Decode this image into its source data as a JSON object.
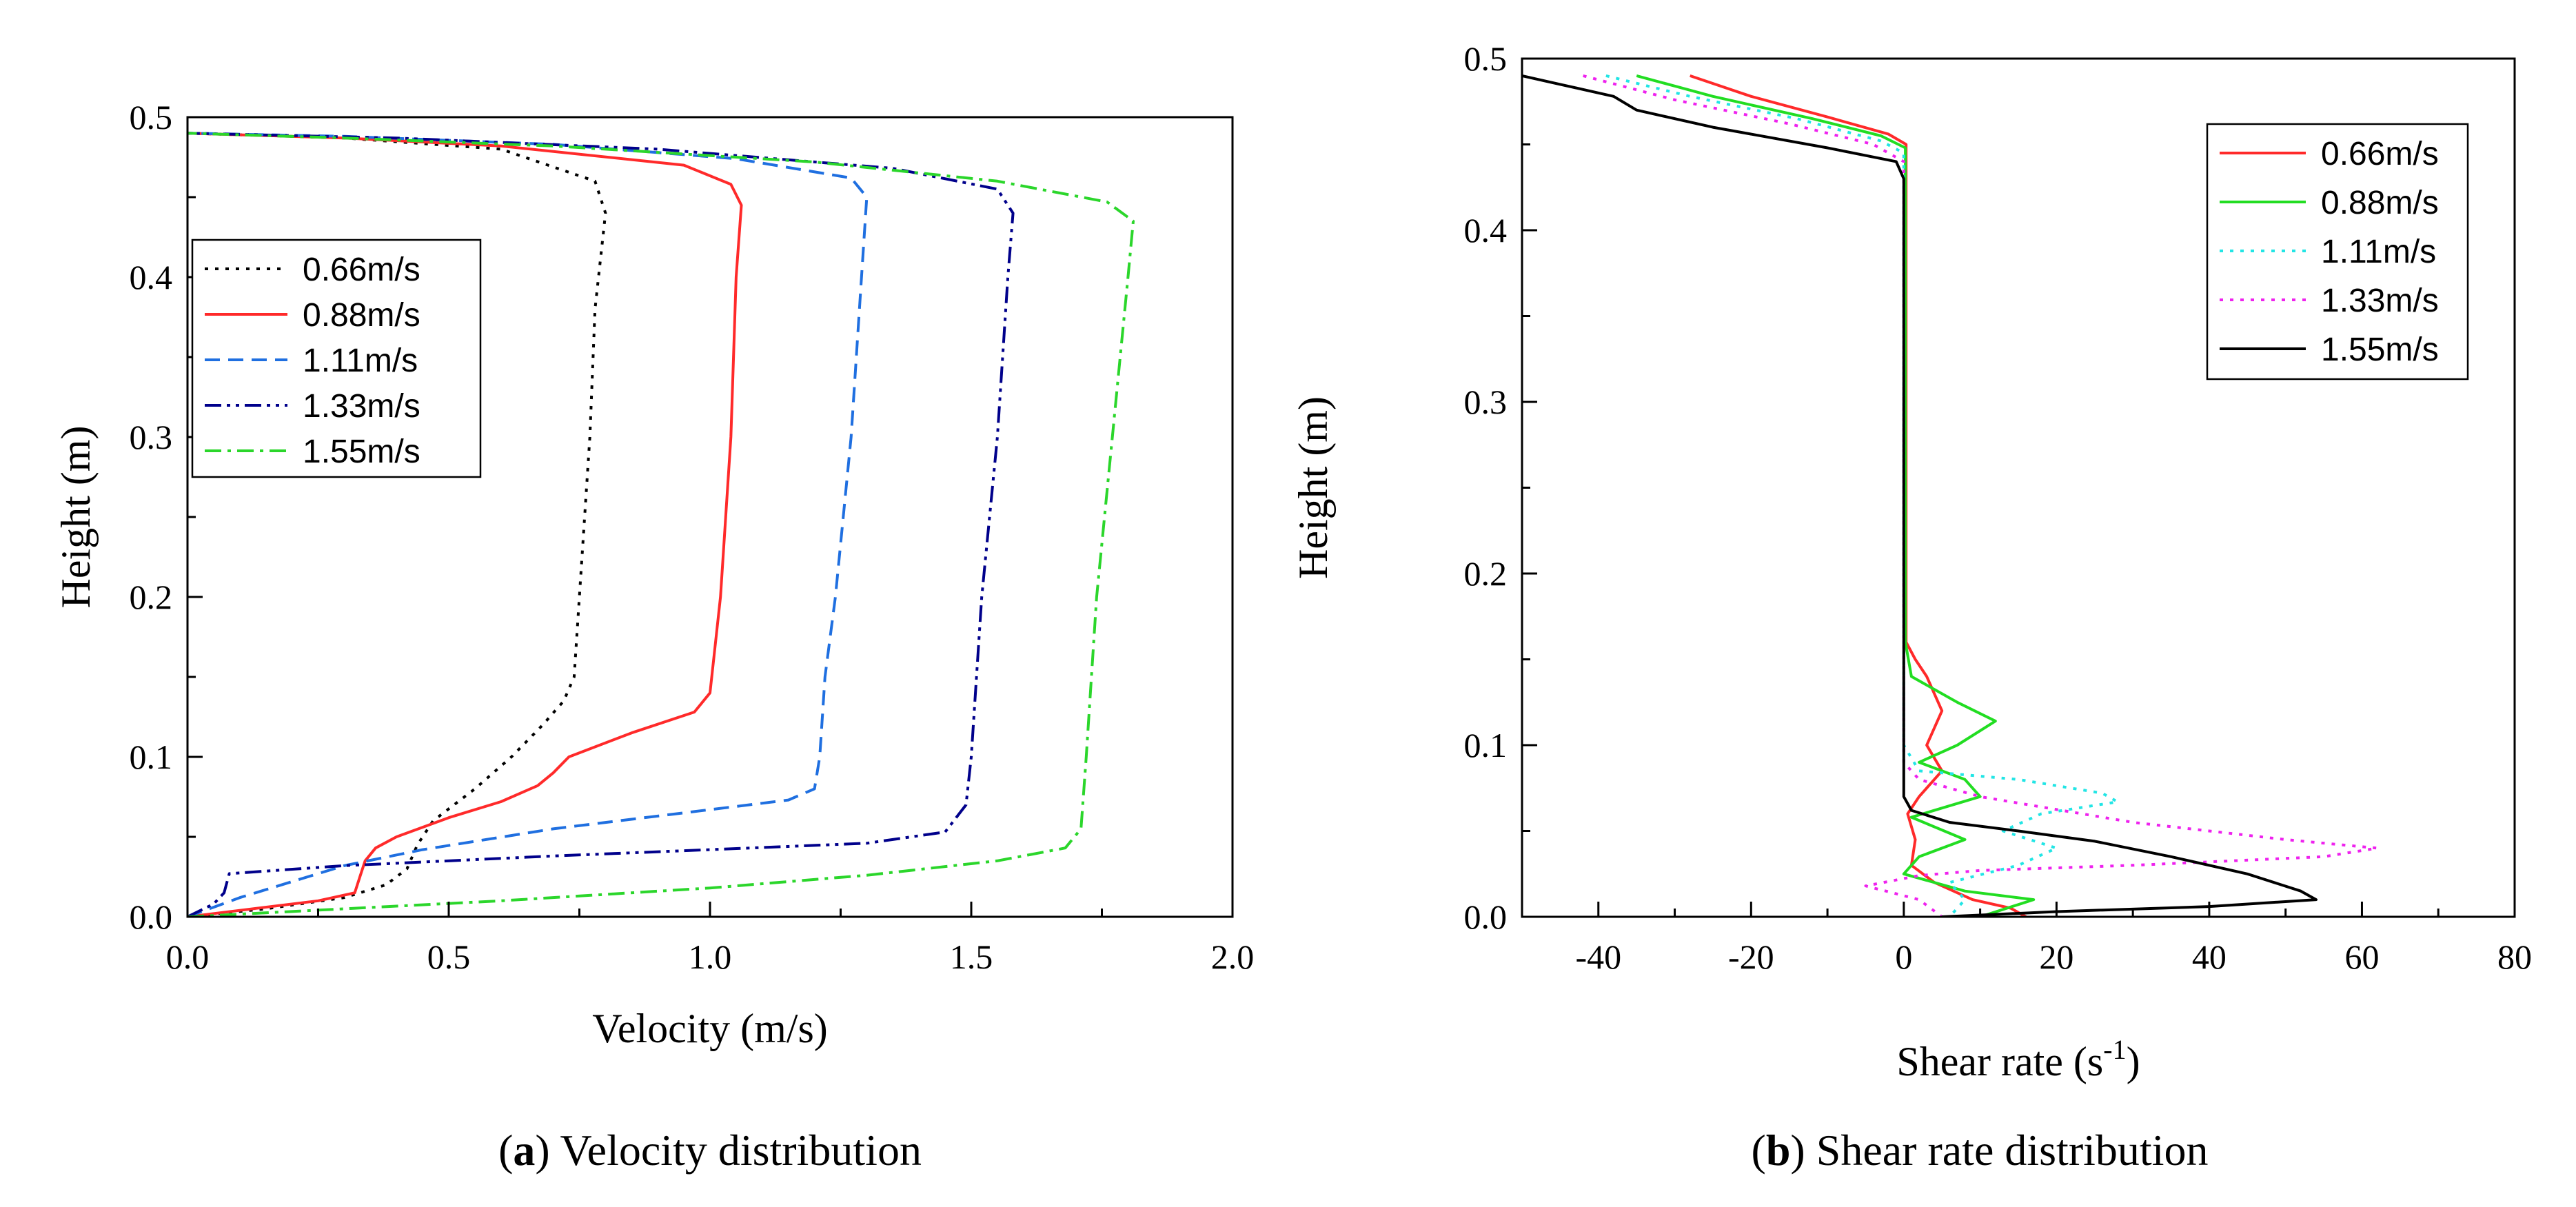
{
  "chart_data": [
    {
      "type": "line",
      "panel": "a",
      "caption_letter": "a",
      "caption_text": " Velocity distribution",
      "xlabel": "Velocity (m/s)",
      "ylabel": "Height (m)",
      "xlim": [
        0,
        2
      ],
      "ylim": [
        0,
        0.5
      ],
      "xticks": [
        0,
        0.5,
        1.0,
        1.5,
        2.0
      ],
      "xtick_labels": [
        "0.0",
        "0.5",
        "1.0",
        "1.5",
        "2.0"
      ],
      "yticks": [
        0,
        0.1,
        0.2,
        0.3,
        0.4,
        0.5
      ],
      "ytick_labels": [
        "0.0",
        "0.1",
        "0.2",
        "0.3",
        "0.4",
        "0.5"
      ],
      "legend_position": "upper-left",
      "series": [
        {
          "name": "0.66m/s",
          "color": "#000000",
          "dash": "dotted",
          "points": [
            [
              0.0,
              0.0
            ],
            [
              0.15,
              0.005
            ],
            [
              0.3,
              0.012
            ],
            [
              0.38,
              0.02
            ],
            [
              0.42,
              0.03
            ],
            [
              0.44,
              0.045
            ],
            [
              0.47,
              0.06
            ],
            [
              0.55,
              0.08
            ],
            [
              0.62,
              0.1
            ],
            [
              0.68,
              0.12
            ],
            [
              0.72,
              0.135
            ],
            [
              0.74,
              0.15
            ],
            [
              0.75,
              0.2
            ],
            [
              0.77,
              0.3
            ],
            [
              0.78,
              0.38
            ],
            [
              0.8,
              0.44
            ],
            [
              0.78,
              0.46
            ],
            [
              0.6,
              0.48
            ],
            [
              0.3,
              0.487
            ],
            [
              0.0,
              0.49
            ]
          ]
        },
        {
          "name": "0.88m/s",
          "color": "#ff2a2a",
          "dash": "solid",
          "points": [
            [
              0.0,
              0.0
            ],
            [
              0.1,
              0.004
            ],
            [
              0.25,
              0.01
            ],
            [
              0.32,
              0.015
            ],
            [
              0.33,
              0.025
            ],
            [
              0.34,
              0.035
            ],
            [
              0.36,
              0.043
            ],
            [
              0.4,
              0.05
            ],
            [
              0.5,
              0.062
            ],
            [
              0.6,
              0.072
            ],
            [
              0.67,
              0.082
            ],
            [
              0.7,
              0.09
            ],
            [
              0.73,
              0.1
            ],
            [
              0.85,
              0.115
            ],
            [
              0.97,
              0.128
            ],
            [
              1.0,
              0.14
            ],
            [
              1.02,
              0.2
            ],
            [
              1.04,
              0.3
            ],
            [
              1.05,
              0.4
            ],
            [
              1.06,
              0.445
            ],
            [
              1.04,
              0.458
            ],
            [
              0.95,
              0.47
            ],
            [
              0.6,
              0.482
            ],
            [
              0.3,
              0.487
            ],
            [
              0.0,
              0.49
            ]
          ]
        },
        {
          "name": "1.11m/s",
          "color": "#1f6fe0",
          "dash": "dashed",
          "points": [
            [
              0.0,
              0.0
            ],
            [
              0.05,
              0.006
            ],
            [
              0.1,
              0.012
            ],
            [
              0.2,
              0.022
            ],
            [
              0.3,
              0.032
            ],
            [
              0.45,
              0.042
            ],
            [
              0.7,
              0.055
            ],
            [
              0.95,
              0.065
            ],
            [
              1.15,
              0.073
            ],
            [
              1.2,
              0.08
            ],
            [
              1.21,
              0.1
            ],
            [
              1.22,
              0.15
            ],
            [
              1.24,
              0.2
            ],
            [
              1.27,
              0.3
            ],
            [
              1.29,
              0.4
            ],
            [
              1.3,
              0.45
            ],
            [
              1.27,
              0.462
            ],
            [
              1.05,
              0.474
            ],
            [
              0.7,
              0.483
            ],
            [
              0.3,
              0.488
            ],
            [
              0.0,
              0.49
            ]
          ]
        },
        {
          "name": "1.33m/s",
          "color": "#00008b",
          "dash": "dashdotdot",
          "points": [
            [
              0.0,
              0.0
            ],
            [
              0.05,
              0.008
            ],
            [
              0.07,
              0.015
            ],
            [
              0.08,
              0.027
            ],
            [
              0.3,
              0.032
            ],
            [
              0.7,
              0.038
            ],
            [
              1.0,
              0.042
            ],
            [
              1.3,
              0.046
            ],
            [
              1.45,
              0.053
            ],
            [
              1.49,
              0.07
            ],
            [
              1.5,
              0.1
            ],
            [
              1.52,
              0.2
            ],
            [
              1.55,
              0.3
            ],
            [
              1.57,
              0.4
            ],
            [
              1.58,
              0.44
            ],
            [
              1.55,
              0.455
            ],
            [
              1.35,
              0.468
            ],
            [
              0.9,
              0.48
            ],
            [
              0.4,
              0.487
            ],
            [
              0.0,
              0.49
            ]
          ]
        },
        {
          "name": "1.55m/s",
          "color": "#2bd62b",
          "dash": "dashdot",
          "points": [
            [
              0.0,
              0.0
            ],
            [
              0.3,
              0.005
            ],
            [
              0.6,
              0.01
            ],
            [
              1.0,
              0.018
            ],
            [
              1.3,
              0.026
            ],
            [
              1.55,
              0.035
            ],
            [
              1.68,
              0.043
            ],
            [
              1.71,
              0.055
            ],
            [
              1.72,
              0.1
            ],
            [
              1.74,
              0.2
            ],
            [
              1.77,
              0.3
            ],
            [
              1.8,
              0.4
            ],
            [
              1.81,
              0.435
            ],
            [
              1.76,
              0.447
            ],
            [
              1.55,
              0.46
            ],
            [
              1.2,
              0.472
            ],
            [
              0.7,
              0.482
            ],
            [
              0.3,
              0.487
            ],
            [
              0.0,
              0.49
            ]
          ]
        }
      ]
    },
    {
      "type": "line",
      "panel": "b",
      "caption_letter": "b",
      "caption_text": " Shear rate distribution",
      "xlabel": "Shear rate (s",
      "xlabel_superscript": "-1",
      "xlabel_suffix": ")",
      "ylabel": "Height (m)",
      "xlim": [
        -50,
        80
      ],
      "ylim": [
        0,
        0.5
      ],
      "xticks": [
        -40,
        -20,
        0,
        20,
        40,
        60,
        80
      ],
      "xtick_labels": [
        "-40",
        "-20",
        "0",
        "20",
        "40",
        "60",
        "80"
      ],
      "yticks": [
        0,
        0.1,
        0.2,
        0.3,
        0.4,
        0.5
      ],
      "ytick_labels": [
        "0.0",
        "0.1",
        "0.2",
        "0.3",
        "0.4",
        "0.5"
      ],
      "legend_position": "upper-right",
      "series": [
        {
          "name": "0.66m/s",
          "color": "#ff2a2a",
          "dash": "solid",
          "points": [
            [
              -28,
              0.49
            ],
            [
              -20,
              0.478
            ],
            [
              -10,
              0.466
            ],
            [
              -2,
              0.456
            ],
            [
              0.3,
              0.45
            ],
            [
              0.3,
              0.3
            ],
            [
              0.3,
              0.16
            ],
            [
              1.5,
              0.15
            ],
            [
              3,
              0.14
            ],
            [
              5,
              0.12
            ],
            [
              3,
              0.1
            ],
            [
              5,
              0.085
            ],
            [
              2,
              0.07
            ],
            [
              0.5,
              0.06
            ],
            [
              1.5,
              0.045
            ],
            [
              1,
              0.03
            ],
            [
              4,
              0.02
            ],
            [
              9,
              0.01
            ],
            [
              14,
              0.005
            ],
            [
              16,
              0.0
            ]
          ]
        },
        {
          "name": "0.88m/s",
          "color": "#22dd22",
          "dash": "solid",
          "points": [
            [
              -35,
              0.49
            ],
            [
              -25,
              0.478
            ],
            [
              -12,
              0.465
            ],
            [
              -3,
              0.455
            ],
            [
              0.2,
              0.448
            ],
            [
              0.2,
              0.3
            ],
            [
              0.2,
              0.16
            ],
            [
              1,
              0.14
            ],
            [
              7,
              0.125
            ],
            [
              12,
              0.114
            ],
            [
              7,
              0.1
            ],
            [
              2,
              0.09
            ],
            [
              8,
              0.08
            ],
            [
              10,
              0.07
            ],
            [
              4,
              0.062
            ],
            [
              1,
              0.058
            ],
            [
              8,
              0.045
            ],
            [
              2,
              0.035
            ],
            [
              0,
              0.025
            ],
            [
              8,
              0.015
            ],
            [
              17,
              0.01
            ],
            [
              10,
              0.0
            ]
          ]
        },
        {
          "name": "1.11m/s",
          "color": "#22e5e5",
          "dash": "dotted",
          "points": [
            [
              -39,
              0.49
            ],
            [
              -28,
              0.478
            ],
            [
              -14,
              0.465
            ],
            [
              -3,
              0.452
            ],
            [
              0,
              0.445
            ],
            [
              0,
              0.3
            ],
            [
              0,
              0.1
            ],
            [
              2,
              0.085
            ],
            [
              15,
              0.08
            ],
            [
              26,
              0.072
            ],
            [
              28,
              0.067
            ],
            [
              18,
              0.06
            ],
            [
              13,
              0.05
            ],
            [
              20,
              0.04
            ],
            [
              15,
              0.03
            ],
            [
              6,
              0.02
            ],
            [
              8,
              0.01
            ],
            [
              6,
              0.0
            ]
          ]
        },
        {
          "name": "1.33m/s",
          "color": "#ee22ee",
          "dash": "dotted",
          "points": [
            [
              -42,
              0.49
            ],
            [
              -30,
              0.476
            ],
            [
              -15,
              0.462
            ],
            [
              -4,
              0.45
            ],
            [
              0,
              0.44
            ],
            [
              0,
              0.3
            ],
            [
              0,
              0.09
            ],
            [
              2,
              0.08
            ],
            [
              10,
              0.07
            ],
            [
              30,
              0.055
            ],
            [
              50,
              0.045
            ],
            [
              62,
              0.04
            ],
            [
              55,
              0.035
            ],
            [
              30,
              0.03
            ],
            [
              10,
              0.027
            ],
            [
              2,
              0.024
            ],
            [
              -5,
              0.018
            ],
            [
              2,
              0.01
            ],
            [
              5,
              0.0
            ]
          ]
        },
        {
          "name": "1.55m/s",
          "color": "#000000",
          "dash": "solid",
          "points": [
            [
              -50,
              0.49
            ],
            [
              -45,
              0.485
            ],
            [
              -38,
              0.478
            ],
            [
              -35,
              0.47
            ],
            [
              -25,
              0.46
            ],
            [
              -10,
              0.448
            ],
            [
              -1,
              0.44
            ],
            [
              0,
              0.43
            ],
            [
              0,
              0.3
            ],
            [
              0,
              0.1
            ],
            [
              0,
              0.07
            ],
            [
              1,
              0.062
            ],
            [
              6,
              0.055
            ],
            [
              15,
              0.05
            ],
            [
              25,
              0.044
            ],
            [
              35,
              0.035
            ],
            [
              45,
              0.025
            ],
            [
              52,
              0.015
            ],
            [
              54,
              0.01
            ],
            [
              40,
              0.006
            ],
            [
              20,
              0.003
            ],
            [
              10,
              0.001
            ],
            [
              5,
              0.0
            ]
          ]
        }
      ]
    }
  ]
}
